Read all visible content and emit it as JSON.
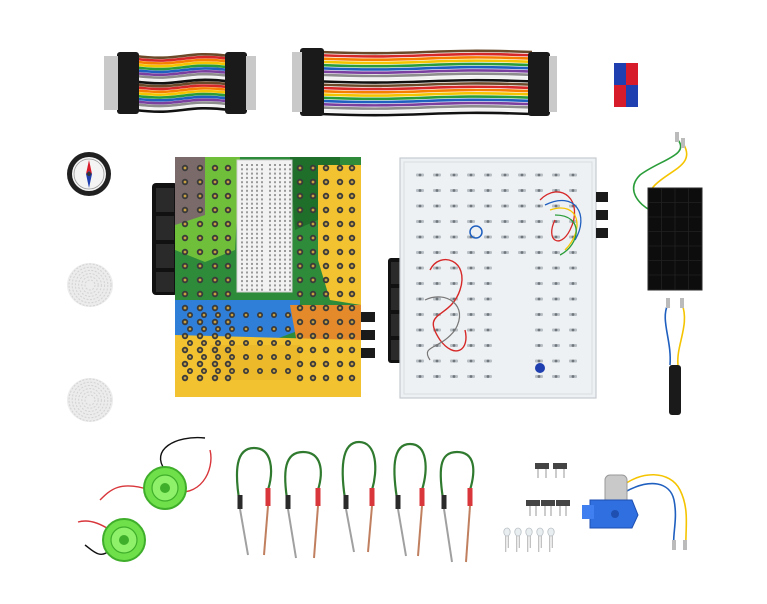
{
  "scene": {
    "background": "#ffffff",
    "items": [
      {
        "name": "jumper-wire-bundle-short",
        "icon": "ribbon-cable-icon"
      },
      {
        "name": "jumper-wire-bundle-long",
        "icon": "ribbon-cable-icon"
      },
      {
        "name": "bar-magnet",
        "icon": "magnet-icon"
      },
      {
        "name": "compass",
        "icon": "compass-icon"
      },
      {
        "name": "rope-coil-1",
        "icon": "rope-icon"
      },
      {
        "name": "rope-coil-2",
        "icon": "rope-icon"
      },
      {
        "name": "illustrated-circuit-board",
        "icon": "circuit-board-icon"
      },
      {
        "name": "clear-circuit-board",
        "icon": "circuit-board-icon"
      },
      {
        "name": "solar-panel",
        "icon": "solar-panel-icon"
      },
      {
        "name": "buzzer-module",
        "icon": "buzzer-icon"
      },
      {
        "name": "piezo-disc-1",
        "icon": "piezo-icon"
      },
      {
        "name": "piezo-disc-2",
        "icon": "piezo-icon"
      },
      {
        "name": "probe-pair-1",
        "icon": "probe-icon"
      },
      {
        "name": "probe-pair-2",
        "icon": "probe-icon"
      },
      {
        "name": "probe-pair-3",
        "icon": "probe-icon"
      },
      {
        "name": "probe-pair-4",
        "icon": "probe-icon"
      },
      {
        "name": "probe-pair-5",
        "icon": "probe-icon"
      },
      {
        "name": "slide-switches",
        "icon": "switch-icon"
      },
      {
        "name": "leds",
        "icon": "led-icon"
      },
      {
        "name": "gear-motor",
        "icon": "motor-icon"
      }
    ],
    "colors": {
      "ribbon": [
        "#6b4a2a",
        "#d62828",
        "#f77f00",
        "#f5c400",
        "#2a9d3a",
        "#1f5fbf",
        "#7b3fa0",
        "#8d8d8d",
        "#f2f2f2",
        "#111111"
      ],
      "magnet_red": "#d81b2a",
      "magnet_blue": "#1f3fb0",
      "board_green": "#2e8b3a",
      "board_yellow": "#f2c230",
      "board_blue": "#2f7fd8",
      "board_orange": "#e58a2a",
      "clear_board": "#eef1f3",
      "solar": "#0d0d0d",
      "piezo_green": "#6fe04a",
      "probe_wire": "#2f7a2f",
      "probe_tip_red": "#d8363a",
      "motor_blue": "#2f6fe0"
    }
  }
}
